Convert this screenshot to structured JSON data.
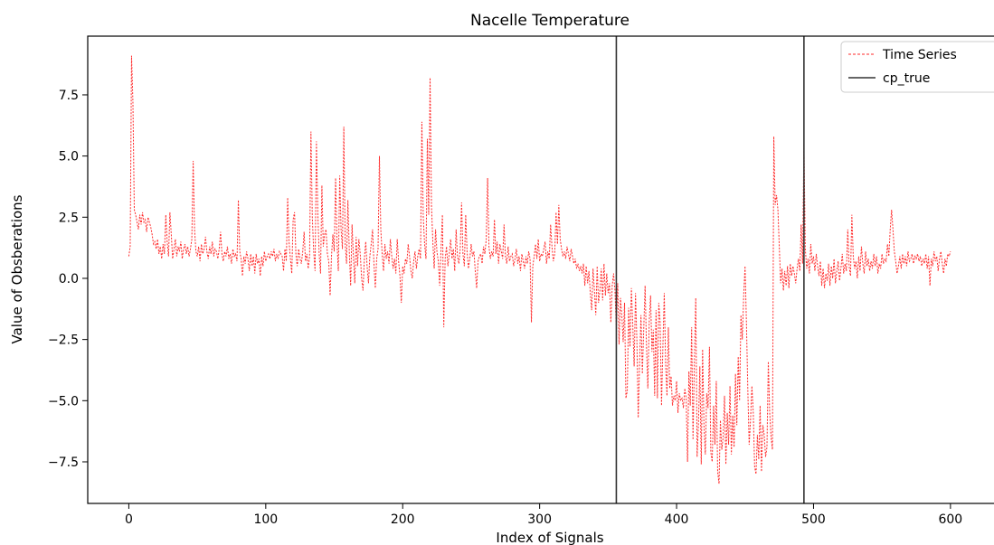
{
  "chart_data": {
    "type": "line",
    "title": "Nacelle Temperature",
    "xlabel": "Index of Signals",
    "ylabel": "Value of Obsberations",
    "xlim": [
      -30,
      645
    ],
    "ylim": [
      -9.2,
      9.9
    ],
    "x_ticks": [
      0,
      100,
      200,
      300,
      400,
      500,
      600
    ],
    "x_tick_labels": [
      "0",
      "100",
      "200",
      "300",
      "400",
      "500",
      "600"
    ],
    "y_ticks": [
      -7.5,
      -5.0,
      -2.5,
      0.0,
      2.5,
      5.0,
      7.5
    ],
    "y_tick_labels": [
      "−7.5",
      "−5.0",
      "−2.5",
      "0.0",
      "2.5",
      "5.0",
      "7.5"
    ],
    "grid": false,
    "legend_position": "top-right",
    "legend": [
      {
        "label": "Time Series",
        "style": "dashed",
        "color": "#ff2a2a"
      },
      {
        "label": "cp_true",
        "style": "solid",
        "color": "#333333"
      }
    ],
    "series": [
      {
        "name": "Time Series",
        "color": "#ff2a2a",
        "style": "dashed",
        "x_start": 0,
        "x_step": 1,
        "values": [
          0.9,
          1.3,
          9.1,
          7.2,
          2.8,
          2.6,
          2.3,
          2.0,
          2.6,
          2.2,
          2.7,
          2.3,
          2.4,
          1.9,
          2.5,
          2.3,
          2.1,
          1.8,
          1.4,
          1.5,
          1.2,
          1.6,
          1.0,
          1.3,
          0.8,
          1.4,
          1.0,
          2.6,
          1.5,
          0.9,
          2.7,
          1.8,
          0.8,
          1.2,
          1.6,
          0.9,
          1.3,
          1.1,
          1.5,
          0.8,
          1.2,
          1.4,
          1.0,
          1.3,
          0.9,
          1.2,
          1.6,
          4.8,
          2.0,
          1.1,
          0.9,
          1.3,
          0.7,
          1.4,
          1.0,
          1.2,
          1.7,
          1.1,
          0.8,
          1.3,
          1.0,
          1.5,
          0.9,
          1.2,
          1.1,
          0.8,
          1.2,
          1.9,
          1.0,
          0.7,
          1.1,
          0.9,
          1.3,
          0.8,
          1.0,
          0.6,
          1.2,
          0.9,
          1.0,
          0.7,
          3.2,
          1.1,
          0.8,
          0.1,
          0.9,
          0.6,
          1.1,
          0.8,
          0.3,
          1.0,
          0.5,
          0.9,
          0.2,
          1.0,
          0.6,
          0.8,
          0.1,
          0.9,
          0.5,
          1.1,
          0.7,
          0.9,
          1.0,
          0.8,
          1.1,
          0.9,
          1.2,
          0.7,
          1.0,
          0.8,
          1.1,
          1.0,
          0.9,
          0.3,
          1.2,
          0.7,
          3.3,
          1.5,
          0.8,
          0.2,
          2.4,
          2.7,
          1.0,
          0.5,
          1.2,
          0.8,
          0.6,
          1.1,
          1.9,
          0.7,
          1.0,
          0.4,
          0.9,
          6.0,
          2.5,
          1.1,
          0.3,
          5.6,
          2.7,
          1.0,
          0.2,
          3.8,
          1.3,
          1.8,
          2.0,
          1.0,
          0.7,
          -0.7,
          0.9,
          1.8,
          1.1,
          4.1,
          1.5,
          0.3,
          4.2,
          2.0,
          1.2,
          6.2,
          1.4,
          0.6,
          3.2,
          1.1,
          -0.3,
          2.2,
          0.9,
          -0.2,
          1.7,
          0.5,
          1.6,
          1.0,
          0.0,
          -0.5,
          0.8,
          1.5,
          0.5,
          -0.2,
          0.9,
          1.4,
          2.0,
          0.6,
          -0.4,
          0.8,
          1.2,
          5.0,
          2.0,
          1.0,
          0.3,
          1.4,
          0.8,
          1.1,
          0.6,
          1.6,
          0.9,
          0.4,
          0.8,
          0.2,
          1.6,
          0.7,
          0.1,
          -1.0,
          0.5,
          0.2,
          0.8,
          0.6,
          1.4,
          0.9,
          0.3,
          0.0,
          0.7,
          1.1,
          0.4,
          0.9,
          1.2,
          0.8,
          6.4,
          2.5,
          1.4,
          0.8,
          5.7,
          2.6,
          8.2,
          3.0,
          1.5,
          0.4,
          2.0,
          1.1,
          0.7,
          -0.3,
          1.2,
          2.6,
          -2.0,
          0.8,
          1.3,
          0.5,
          1.0,
          1.6,
          0.8,
          1.2,
          0.3,
          2.0,
          0.9,
          0.6,
          1.2,
          3.1,
          1.0,
          0.5,
          2.6,
          1.1,
          0.4,
          0.8,
          1.4,
          0.9,
          1.1,
          0.3,
          -0.4,
          0.7,
          0.9,
          1.0,
          0.6,
          1.3,
          1.0,
          1.6,
          4.1,
          1.3,
          0.8,
          1.1,
          0.9,
          2.4,
          1.0,
          1.5,
          0.6,
          1.4,
          1.1,
          0.8,
          2.2,
          0.9,
          0.6,
          1.3,
          0.7,
          0.9,
          1.0,
          0.5,
          0.8,
          1.2,
          0.6,
          0.9,
          0.3,
          1.0,
          0.7,
          0.4,
          0.9,
          0.6,
          1.1,
          0.8,
          -1.8,
          0.5,
          0.9,
          1.4,
          0.8,
          1.6,
          0.7,
          1.0,
          0.9,
          1.2,
          1.5,
          0.6,
          1.1,
          0.8,
          2.2,
          1.3,
          0.7,
          1.0,
          2.7,
          1.4,
          3.0,
          1.6,
          1.2,
          0.9,
          1.1,
          0.8,
          1.3,
          1.0,
          0.7,
          1.2,
          0.9,
          0.6,
          0.8,
          0.4,
          0.6,
          0.3,
          0.5,
          0.2,
          0.6,
          -0.3,
          0.5,
          -0.2,
          0.3,
          -0.6,
          -1.3,
          0.4,
          -0.5,
          -1.5,
          0.5,
          -1.0,
          -0.5,
          0.4,
          -0.9,
          0.6,
          -0.7,
          0.2,
          -0.6,
          -0.2,
          -1.8,
          -0.3,
          0.2,
          -0.5,
          -2.0,
          -0.2,
          -2.7,
          -0.8,
          -1.5,
          -2.6,
          -1.0,
          -4.9,
          -4.6,
          -1.2,
          -2.8,
          -0.4,
          -1.9,
          -3.6,
          -0.6,
          -2.5,
          -5.7,
          -3.4,
          -1.5,
          -3.9,
          -2.1,
          -0.3,
          -2.7,
          -4.5,
          -1.8,
          -0.7,
          -3.0,
          -2.1,
          -4.8,
          -1.3,
          -4.9,
          -1.0,
          -1.8,
          -5.2,
          -2.8,
          -0.6,
          -3.5,
          -4.8,
          -2.0,
          -4.5,
          -4.0,
          -5.2,
          -4.8,
          -5.0,
          -4.2,
          -5.5,
          -4.7,
          -5.0,
          -4.9,
          -5.3,
          -4.5,
          -4.9,
          -7.5,
          -3.8,
          -5.2,
          -2.0,
          -6.6,
          -3.4,
          -0.8,
          -7.3,
          -5.9,
          -3.6,
          -7.6,
          -2.9,
          -6.0,
          -7.2,
          -4.7,
          -5.3,
          -2.8,
          -7.1,
          -7.5,
          -5.2,
          -6.8,
          -4.2,
          -7.9,
          -8.4,
          -5.8,
          -7.0,
          -6.5,
          -4.8,
          -7.6,
          -5.5,
          -6.8,
          -4.4,
          -7.2,
          -5.6,
          -6.9,
          -3.9,
          -6.0,
          -3.2,
          -5.0,
          -1.5,
          -2.5,
          -0.7,
          0.5,
          -1.8,
          -4.5,
          -6.8,
          -5.8,
          -4.4,
          -5.5,
          -7.7,
          -8.0,
          -6.4,
          -7.4,
          -5.2,
          -7.9,
          -6.0,
          -6.4,
          -7.3,
          -6.9,
          -3.4,
          -5.5,
          -6.5,
          -7.0,
          5.8,
          3.0,
          3.4,
          2.8,
          1.3,
          -0.2,
          0.4,
          -0.5,
          0.3,
          -0.3,
          0.5,
          -0.4,
          0.6,
          0.1,
          0.5,
          0.2,
          -0.2,
          0.4,
          0.8,
          0.3,
          2.2,
          0.6,
          5.5,
          1.2,
          0.4,
          0.8,
          0.2,
          1.4,
          0.6,
          0.9,
          0.3,
          1.0,
          0.5,
          0.1,
          0.7,
          -0.3,
          0.4,
          -0.4,
          0.2,
          -0.1,
          0.6,
          -0.3,
          0.5,
          0.0,
          0.8,
          -0.2,
          0.3,
          0.7,
          -0.1,
          0.4,
          1.0,
          0.2,
          0.6,
          0.3,
          2.0,
          0.5,
          0.1,
          2.6,
          0.9,
          0.4,
          0.7,
          0.0,
          0.9,
          0.3,
          1.3,
          0.6,
          0.2,
          1.1,
          0.5,
          0.8,
          0.3,
          0.7,
          0.4,
          1.0,
          0.5,
          0.9,
          0.2,
          0.6,
          0.4,
          1.0,
          0.6,
          0.8,
          0.7,
          1.4,
          0.9,
          2.0,
          2.8,
          2.0,
          1.1,
          0.7,
          0.2,
          0.5,
          0.9,
          0.4,
          1.0,
          0.6,
          0.9,
          0.5,
          1.1,
          0.7,
          0.8,
          1.0,
          0.6,
          0.9,
          0.8,
          1.0,
          0.7,
          0.9,
          0.5,
          0.8,
          0.6,
          1.0,
          0.4,
          0.9,
          -0.3,
          0.8,
          0.5,
          1.1,
          0.7,
          0.9,
          0.3,
          0.8,
          1.1,
          0.6,
          0.2,
          0.8,
          0.5,
          1.0,
          0.9,
          1.1
        ]
      }
    ],
    "change_points": {
      "name": "cp_true",
      "color": "#333333",
      "x": [
        356,
        493
      ]
    }
  }
}
